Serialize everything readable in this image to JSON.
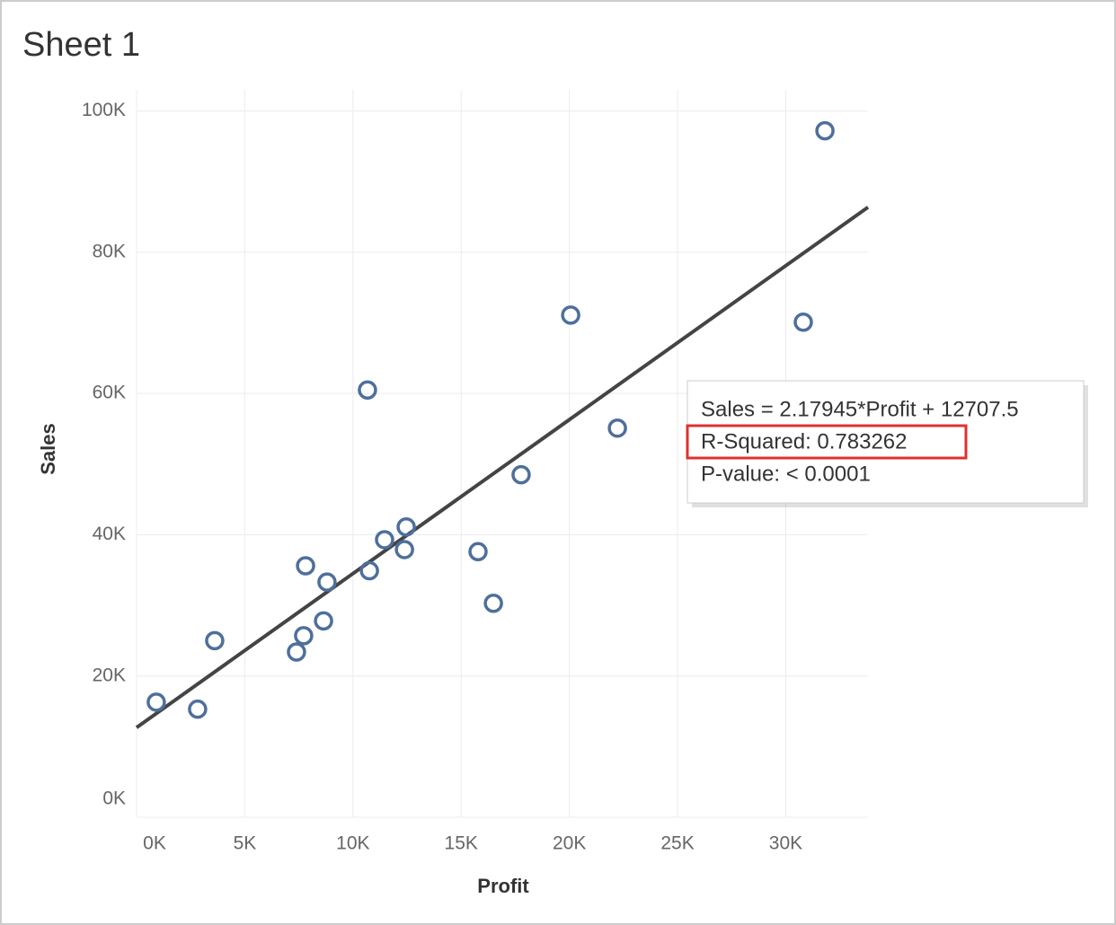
{
  "chart_data": {
    "type": "scatter",
    "title": "Sheet 1",
    "x_label": "Profit",
    "y_label": "Sales",
    "x": [
      910,
      2820,
      3610,
      7390,
      7720,
      7810,
      8640,
      8800,
      10670,
      10760,
      11460,
      12380,
      12460,
      15780,
      16490,
      17770,
      20060,
      22220,
      30810,
      31810
    ],
    "series": [
      {
        "name": "Sales",
        "color": "#4e6f9c",
        "values": [
          16300,
          15300,
          25000,
          23400,
          25700,
          35600,
          27800,
          33300,
          60500,
          34900,
          39300,
          37900,
          41100,
          37600,
          30300,
          48500,
          71100,
          55100,
          70100,
          97200
        ]
      }
    ],
    "xlim": [
      0,
      33800
    ],
    "ylim": [
      0,
      103000
    ],
    "xticks": [
      {
        "value": 0,
        "label": "0K"
      },
      {
        "value": 5000,
        "label": "5K"
      },
      {
        "value": 10000,
        "label": "10K"
      },
      {
        "value": 15000,
        "label": "15K"
      },
      {
        "value": 20000,
        "label": "20K"
      },
      {
        "value": 25000,
        "label": "25K"
      },
      {
        "value": 30000,
        "label": "30K"
      }
    ],
    "yticks": [
      {
        "value": 0,
        "label": "0K"
      },
      {
        "value": 20000,
        "label": "20K"
      },
      {
        "value": 40000,
        "label": "40K"
      },
      {
        "value": 60000,
        "label": "60K"
      },
      {
        "value": 80000,
        "label": "80K"
      },
      {
        "value": 100000,
        "label": "100K"
      }
    ],
    "grid": true,
    "trend_line": {
      "slope": 2.17945,
      "intercept": 12707.5,
      "color": "#444444"
    },
    "tooltip": [
      "Sales = 2.17945*Profit + 12707.5",
      "R-Squared: 0.783262",
      "P-value: < 0.0001"
    ]
  }
}
